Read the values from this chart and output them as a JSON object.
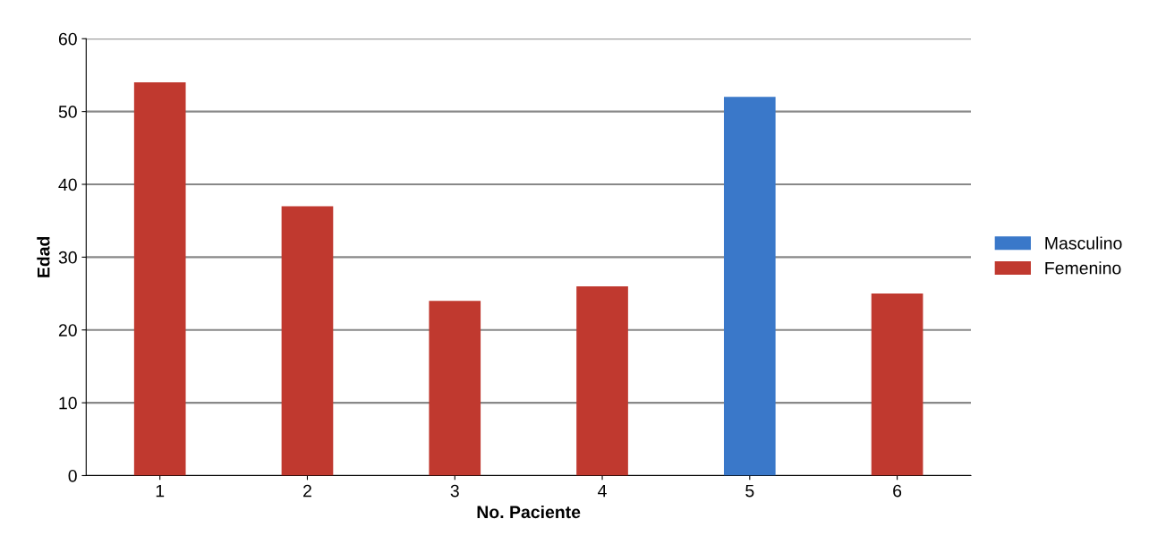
{
  "chart_data": {
    "type": "bar",
    "xlabel": "No. Paciente",
    "ylabel": "Edad",
    "categories": [
      "1",
      "2",
      "3",
      "4",
      "5",
      "6"
    ],
    "series": [
      {
        "name": "Masculino",
        "color": "#3a78c9",
        "values": [
          null,
          null,
          null,
          null,
          52,
          null
        ]
      },
      {
        "name": "Femenino",
        "color": "#c0392f",
        "values": [
          54,
          37,
          24,
          26,
          null,
          25
        ]
      }
    ],
    "ylim": [
      0,
      60
    ],
    "yticks": [
      0,
      10,
      20,
      30,
      40,
      50,
      60
    ],
    "grid": "y",
    "legend": "right"
  }
}
